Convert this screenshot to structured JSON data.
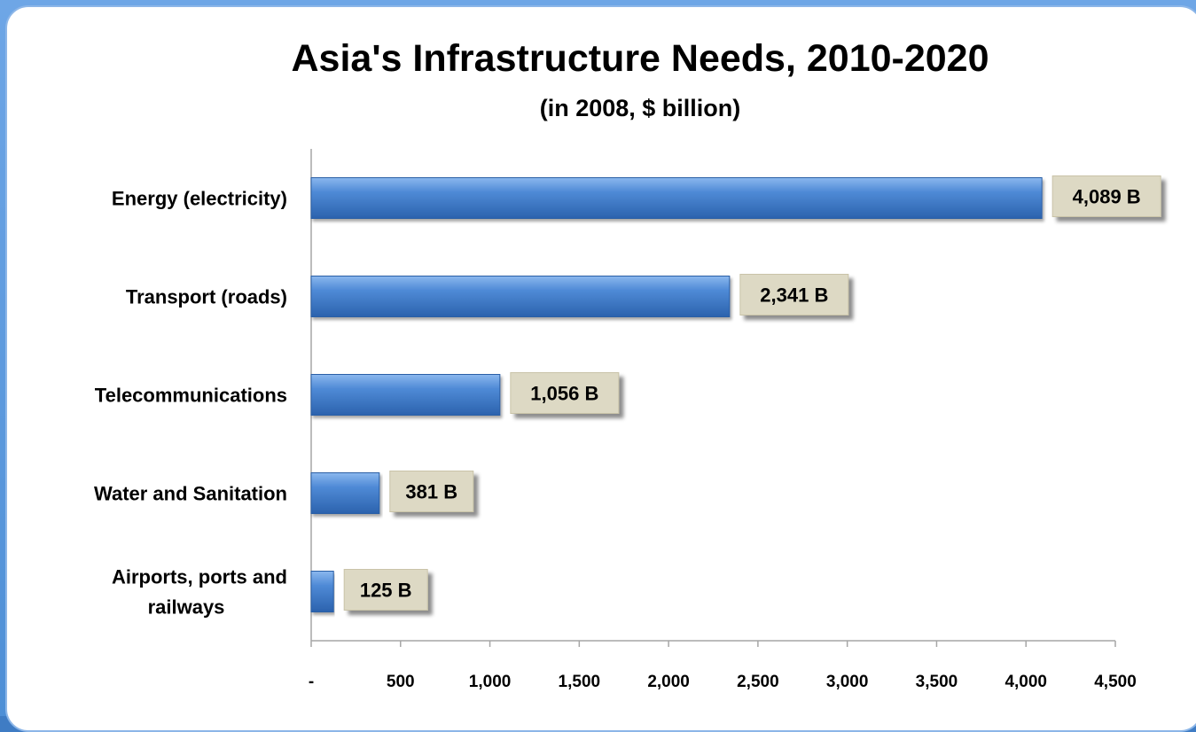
{
  "chart_data": {
    "type": "bar",
    "orientation": "horizontal",
    "title": "Asia's Infrastructure Needs, 2010-2020",
    "subtitle": "(in 2008, $ billion)",
    "categories": [
      [
        "Energy (electricity)"
      ],
      [
        "Transport (roads)"
      ],
      [
        "Telecommunications"
      ],
      [
        "Water and Sanitation"
      ],
      [
        "Airports, ports and",
        "railways"
      ]
    ],
    "values": [
      4089,
      2341,
      1056,
      381,
      125
    ],
    "data_labels": [
      "4,089 B",
      "2,341 B",
      "1,056 B",
      "381 B",
      "125 B"
    ],
    "xlim": [
      0,
      4500
    ],
    "x_ticks": [
      0,
      500,
      1000,
      1500,
      2000,
      2500,
      3000,
      3500,
      4000,
      4500
    ],
    "x_tick_labels": [
      "-",
      "500",
      "1,000",
      "1,500",
      "2,000",
      "2,500",
      "3,000",
      "3,500",
      "4,000",
      "4,500"
    ],
    "grid": false,
    "colors": {
      "bar": "#3d78c6",
      "bar_highlight": "#8bb8ee",
      "bar_shadow": "#1f4f93",
      "label_box": "#ddd9c4"
    }
  }
}
